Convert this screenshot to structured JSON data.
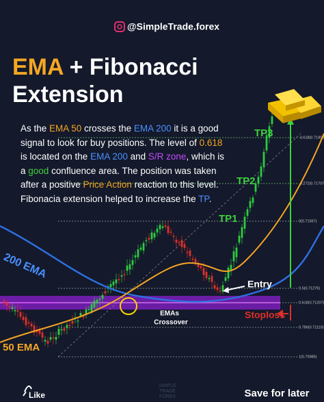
{
  "header": {
    "handle": "@SimpleTrade.forex"
  },
  "title": {
    "highlight": "EMA",
    "rest": "+ Fibonacci",
    "line2": "Extension"
  },
  "body": [
    {
      "text": "As the "
    },
    {
      "text": "EMA 50",
      "color": "#f5a623"
    },
    {
      "text": " crosses the "
    },
    {
      "text": "EMA 200",
      "color": "#4a90ff"
    },
    {
      "text": " it is a good signal to look for buy positions. The level of "
    },
    {
      "text": "0.618",
      "color": "#f5a623"
    },
    {
      "text": " is located on the "
    },
    {
      "text": "EMA 200",
      "color": "#4a90ff"
    },
    {
      "text": " and "
    },
    {
      "text": "S/R zone",
      "color": "#c24bff"
    },
    {
      "text": ", which is a "
    },
    {
      "text": "good",
      "color": "#3fd13f"
    },
    {
      "text": " confluence area. The position was taken after a positive "
    },
    {
      "text": "Price Action",
      "color": "#f5a623"
    },
    {
      "text": " reaction to this level. Fibonacia extension helped to increase the "
    },
    {
      "text": "TP",
      "color": "#4a90ff"
    },
    {
      "text": "."
    }
  ],
  "chart": {
    "tp": [
      "TP3",
      "TP2",
      "TP1"
    ],
    "ema200": "200 EMA",
    "ema50": "50 EMA",
    "entry": "Entry",
    "crossover": [
      "EMAs",
      "Crossover"
    ],
    "stoploss": "Stoploss",
    "fib": [
      "-0.618(0.71908)",
      "-0.272(0.71707)",
      "0(0.71567)",
      "0.5(0.71276)",
      "0.618(0.71207)",
      "0.786(0.71110)",
      "1(0.70985)"
    ]
  },
  "footer": {
    "like": "Like",
    "save": "Save for later",
    "watermark": [
      "SIMPLE",
      "TRADE",
      "FOREX"
    ]
  }
}
